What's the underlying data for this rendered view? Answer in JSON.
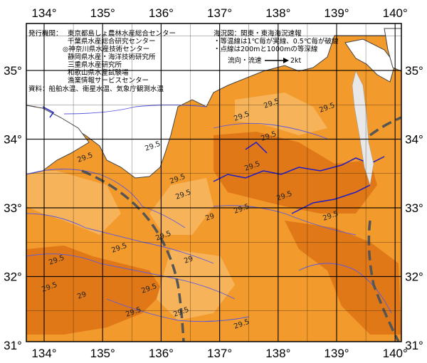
{
  "map": {
    "lon_labels": [
      "134°",
      "135°",
      "136°",
      "137°",
      "138°",
      "139°",
      "140°"
    ],
    "lat_labels": [
      "35°",
      "34°",
      "33°",
      "32°",
      "31°"
    ],
    "colors": {
      "sea_base": "#f39a2c",
      "sea_warm": "#e07818",
      "sea_light": "#f6b35a",
      "land": "#ffffff",
      "isotherm": "#3a3ad8",
      "isobath": "#1c1cc8",
      "current_path": "#555555",
      "grid": "#000000"
    }
  },
  "credits": {
    "publisher_label": "発行機関：",
    "publishers": [
      "東京都島しょ農林水産総合センター",
      "千葉県水産総合研究センター",
      "◎神奈川県水産技術センター",
      "静岡県水産・海洋技術研究所",
      "三重県水産研究所",
      "和歌山県水産試験場",
      "漁業情報サービスセンター"
    ],
    "source": "資料：船舶水温、衛星水温、気象庁観測水温"
  },
  "legend": {
    "title": "海況図：関東・東海海況速報",
    "line1": "・等温線は1℃毎が実線、0.5℃毎が破線",
    "line2": "・点線は200mと1000mの等深線",
    "flow_label": "流向・流速",
    "flow_speed": "2kt"
  },
  "isotherm_labels": [
    "29.5",
    "29.5",
    "29.5",
    "29.5",
    "29.5",
    "29.5",
    "29.5",
    "29.5",
    "29.5",
    "29",
    "29.5",
    "29.5",
    "29.5",
    "29.5",
    "29.5",
    "29",
    "29.5",
    "29.5",
    "29",
    "29.5",
    "29.5",
    "29.5",
    "29.5"
  ]
}
